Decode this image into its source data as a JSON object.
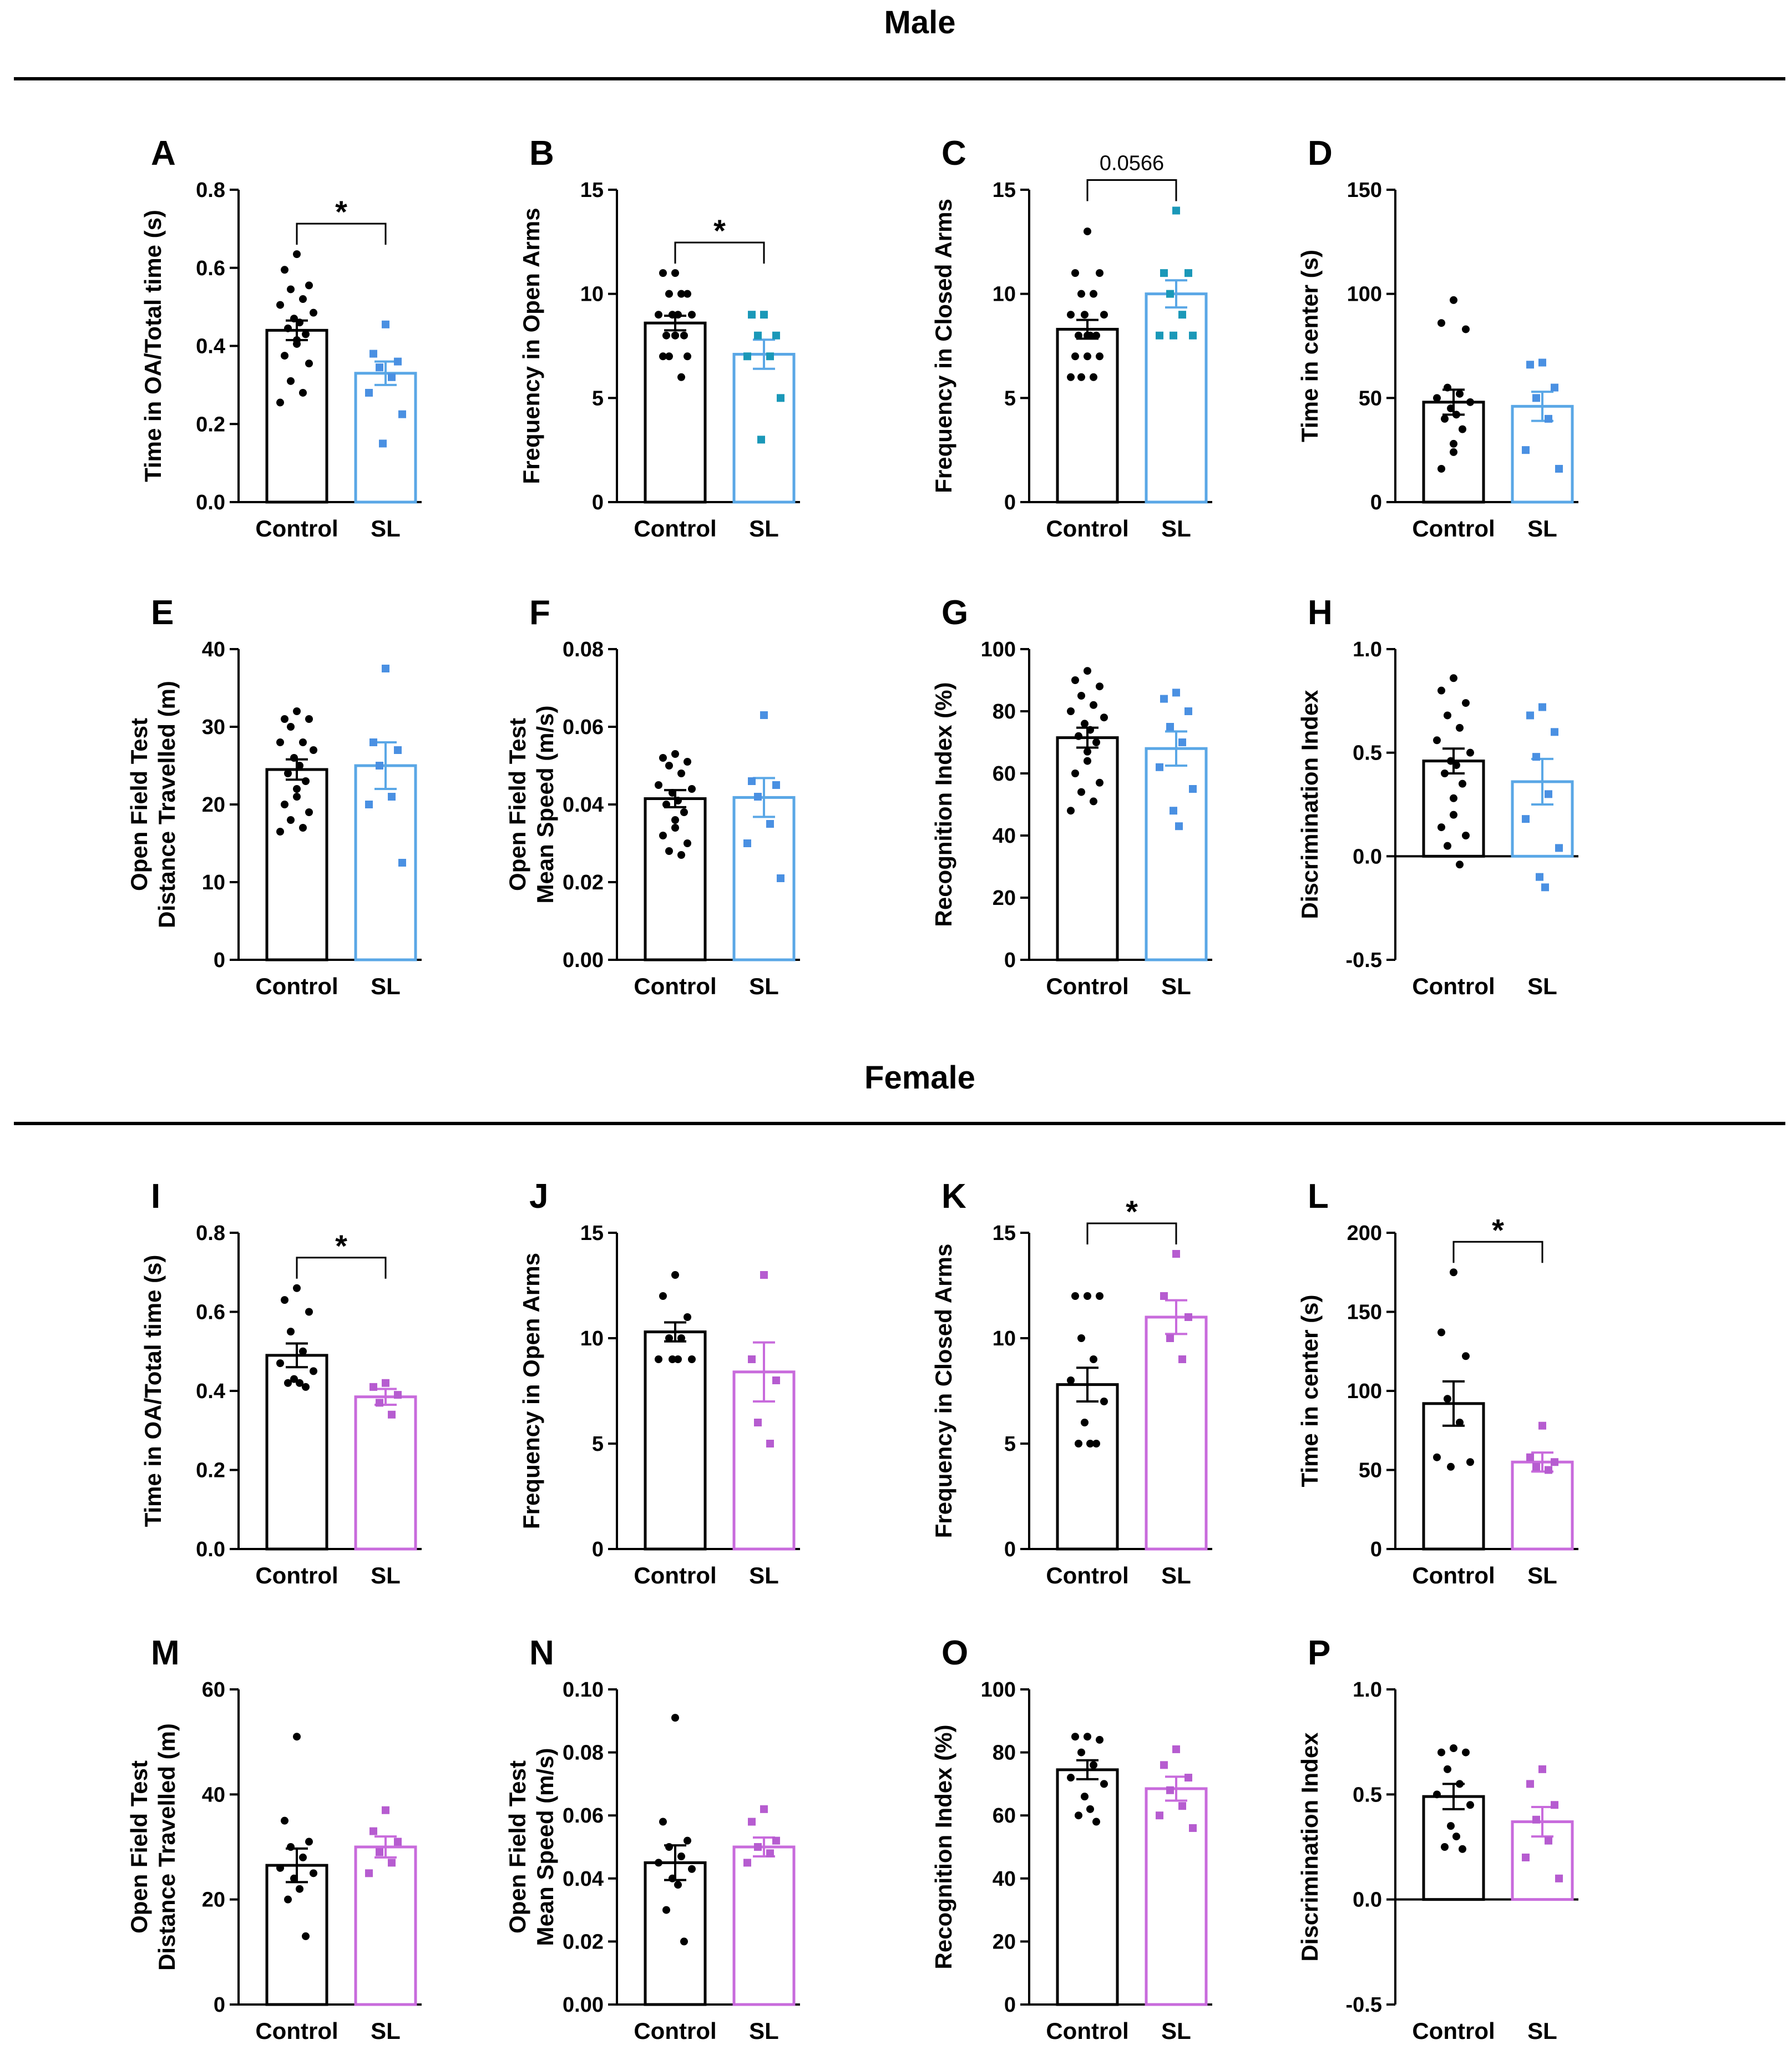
{
  "sections": [
    {
      "title": "Male"
    },
    {
      "title": "Female"
    }
  ],
  "colors": {
    "control": "#000000",
    "male_sl": "#5aa7e6",
    "male_sl_points": "#4a90e2",
    "male_sl_points_alt": "#1a98b8",
    "female_sl": "#c86bdc",
    "female_sl_points": "#b65cd0"
  },
  "chart_data": [
    {
      "panel": "A",
      "type": "bar",
      "section": "Male",
      "ylabel": [
        "Time in OA/Total time (s)"
      ],
      "ylim": [
        0,
        0.8
      ],
      "yticks": [
        "0.0",
        "0.2",
        "0.4",
        "0.6",
        "0.8"
      ],
      "tickvals": [
        0,
        0.2,
        0.4,
        0.6,
        0.8
      ],
      "categories": [
        "Control",
        "SL"
      ],
      "sl_color": "male_sl",
      "sl_point_color": "male_sl_points",
      "bars": [
        {
          "name": "Control",
          "mean": 0.44,
          "sem": 0.025,
          "points": [
            0.635,
            0.595,
            0.555,
            0.545,
            0.52,
            0.505,
            0.485,
            0.47,
            0.46,
            0.445,
            0.43,
            0.415,
            0.405,
            0.375,
            0.355,
            0.31,
            0.28,
            0.255
          ]
        },
        {
          "name": "SL",
          "mean": 0.33,
          "sem": 0.03,
          "points": [
            0.455,
            0.38,
            0.36,
            0.345,
            0.32,
            0.28,
            0.225,
            0.15
          ]
        }
      ],
      "significance": {
        "label": "*",
        "kind": "star"
      }
    },
    {
      "panel": "B",
      "type": "bar",
      "section": "Male",
      "ylabel": [
        "Frequency in Open Arms"
      ],
      "ylim": [
        0,
        15
      ],
      "yticks": [
        "0",
        "5",
        "10",
        "15"
      ],
      "tickvals": [
        0,
        5,
        10,
        15
      ],
      "categories": [
        "Control",
        "SL"
      ],
      "sl_color": "male_sl",
      "sl_point_color": "male_sl_points_alt",
      "bars": [
        {
          "name": "Control",
          "mean": 8.6,
          "sem": 0.35,
          "points": [
            11,
            11,
            10,
            10,
            10,
            9,
            9,
            9,
            9,
            8,
            8,
            8,
            8,
            7,
            7,
            7,
            6
          ]
        },
        {
          "name": "SL",
          "mean": 7.1,
          "sem": 0.7,
          "points": [
            9,
            9,
            8,
            8,
            7,
            7,
            5,
            3
          ]
        }
      ],
      "significance": {
        "label": "*",
        "kind": "star"
      }
    },
    {
      "panel": "C",
      "type": "bar",
      "section": "Male",
      "ylabel": [
        "Frequency in Closed Arms"
      ],
      "ylim": [
        0,
        15
      ],
      "yticks": [
        "0",
        "5",
        "10",
        "15"
      ],
      "tickvals": [
        0,
        5,
        10,
        15
      ],
      "categories": [
        "Control",
        "SL"
      ],
      "sl_color": "male_sl",
      "sl_point_color": "male_sl_points_alt",
      "bars": [
        {
          "name": "Control",
          "mean": 8.3,
          "sem": 0.45,
          "points": [
            13,
            11,
            11,
            10,
            10,
            9,
            9,
            9,
            8,
            8,
            8,
            8,
            7,
            7,
            7,
            6,
            6,
            6
          ]
        },
        {
          "name": "SL",
          "mean": 10.0,
          "sem": 0.65,
          "points": [
            14,
            11,
            11,
            10,
            9,
            8,
            8,
            8
          ]
        }
      ],
      "significance": {
        "label": "0.0566",
        "kind": "p"
      }
    },
    {
      "panel": "D",
      "type": "bar",
      "section": "Male",
      "ylabel": [
        "Time in center (s)"
      ],
      "ylim": [
        0,
        150
      ],
      "yticks": [
        "0",
        "50",
        "100",
        "150"
      ],
      "tickvals": [
        0,
        50,
        100,
        150
      ],
      "categories": [
        "Control",
        "SL"
      ],
      "sl_color": "male_sl",
      "sl_point_color": "male_sl_points",
      "bars": [
        {
          "name": "Control",
          "mean": 48,
          "sem": 6,
          "points": [
            97,
            86,
            83,
            55,
            52,
            50,
            48,
            45,
            42,
            40,
            35,
            28,
            24,
            16
          ]
        },
        {
          "name": "SL",
          "mean": 46,
          "sem": 7,
          "points": [
            67,
            66,
            55,
            50,
            40,
            25,
            16
          ]
        }
      ]
    },
    {
      "panel": "E",
      "type": "bar",
      "section": "Male",
      "ylabel": [
        "Open Field Test",
        "Distance Travelled (m)"
      ],
      "ylim": [
        0,
        40
      ],
      "yticks": [
        "0",
        "10",
        "20",
        "30",
        "40"
      ],
      "tickvals": [
        0,
        10,
        20,
        30,
        40
      ],
      "categories": [
        "Control",
        "SL"
      ],
      "sl_color": "male_sl",
      "sl_point_color": "male_sl_points",
      "bars": [
        {
          "name": "Control",
          "mean": 24.5,
          "sem": 1.3,
          "points": [
            32,
            31,
            31,
            30,
            28,
            28,
            27,
            26,
            25,
            24,
            23,
            22,
            21,
            20,
            19,
            18,
            17,
            16.5
          ]
        },
        {
          "name": "SL",
          "mean": 25.0,
          "sem": 3.0,
          "points": [
            37.5,
            28,
            27,
            25,
            21,
            20,
            12.5
          ]
        }
      ]
    },
    {
      "panel": "F",
      "type": "bar",
      "section": "Male",
      "ylabel": [
        "Open Field Test",
        "Mean Speed (m/s)"
      ],
      "ylim": [
        0,
        0.08
      ],
      "yticks": [
        "0.00",
        "0.02",
        "0.04",
        "0.06",
        "0.08"
      ],
      "tickvals": [
        0,
        0.02,
        0.04,
        0.06,
        0.08
      ],
      "categories": [
        "Control",
        "SL"
      ],
      "sl_color": "male_sl",
      "sl_point_color": "male_sl_points",
      "bars": [
        {
          "name": "Control",
          "mean": 0.0415,
          "sem": 0.0022,
          "points": [
            0.053,
            0.052,
            0.051,
            0.05,
            0.048,
            0.045,
            0.044,
            0.043,
            0.041,
            0.04,
            0.038,
            0.036,
            0.034,
            0.032,
            0.03,
            0.028,
            0.027
          ]
        },
        {
          "name": "SL",
          "mean": 0.0418,
          "sem": 0.005,
          "points": [
            0.063,
            0.046,
            0.045,
            0.042,
            0.035,
            0.03,
            0.021
          ]
        }
      ]
    },
    {
      "panel": "G",
      "type": "bar",
      "section": "Male",
      "ylabel": [
        "Recognition Index (%)"
      ],
      "ylim": [
        0,
        100
      ],
      "yticks": [
        "0",
        "20",
        "40",
        "60",
        "80",
        "100"
      ],
      "tickvals": [
        0,
        20,
        40,
        60,
        80,
        100
      ],
      "categories": [
        "Control",
        "SL"
      ],
      "sl_color": "male_sl",
      "sl_point_color": "male_sl_points",
      "bars": [
        {
          "name": "Control",
          "mean": 71.5,
          "sem": 3.2,
          "points": [
            93,
            90,
            88,
            85,
            82,
            80,
            78,
            76,
            74,
            72,
            70,
            67,
            64,
            60,
            57,
            54,
            51,
            48
          ]
        },
        {
          "name": "SL",
          "mean": 68,
          "sem": 5.5,
          "points": [
            86,
            84,
            80,
            75,
            70,
            62,
            55,
            48,
            43
          ]
        }
      ]
    },
    {
      "panel": "H",
      "type": "bar",
      "section": "Male",
      "ylabel": [
        "Discrimination Index"
      ],
      "ylim": [
        -0.5,
        1.0
      ],
      "yticks": [
        "-0.5",
        "0.0",
        "0.5",
        "1.0"
      ],
      "tickvals": [
        -0.5,
        0,
        0.5,
        1.0
      ],
      "zero_axis": true,
      "categories": [
        "Control",
        "SL"
      ],
      "sl_color": "male_sl",
      "sl_point_color": "male_sl_points",
      "bars": [
        {
          "name": "Control",
          "mean": 0.46,
          "sem": 0.06,
          "points": [
            0.86,
            0.8,
            0.74,
            0.68,
            0.62,
            0.56,
            0.5,
            0.46,
            0.44,
            0.4,
            0.35,
            0.28,
            0.2,
            0.14,
            0.1,
            0.05,
            -0.04
          ]
        },
        {
          "name": "SL",
          "mean": 0.36,
          "sem": 0.11,
          "points": [
            0.72,
            0.68,
            0.6,
            0.48,
            0.3,
            0.18,
            0.04,
            -0.1,
            -0.15
          ]
        }
      ]
    },
    {
      "panel": "I",
      "type": "bar",
      "section": "Female",
      "ylabel": [
        "Time in OA/Total time (s)"
      ],
      "ylim": [
        0,
        0.8
      ],
      "yticks": [
        "0.0",
        "0.2",
        "0.4",
        "0.6",
        "0.8"
      ],
      "tickvals": [
        0,
        0.2,
        0.4,
        0.6,
        0.8
      ],
      "categories": [
        "Control",
        "SL"
      ],
      "sl_color": "female_sl",
      "sl_point_color": "female_sl_points",
      "bars": [
        {
          "name": "Control",
          "mean": 0.49,
          "sem": 0.03,
          "points": [
            0.66,
            0.63,
            0.6,
            0.55,
            0.5,
            0.47,
            0.45,
            0.43,
            0.42,
            0.42,
            0.41
          ]
        },
        {
          "name": "SL",
          "mean": 0.385,
          "sem": 0.02,
          "points": [
            0.42,
            0.41,
            0.39,
            0.37,
            0.34
          ]
        }
      ],
      "significance": {
        "label": "*",
        "kind": "star"
      }
    },
    {
      "panel": "J",
      "type": "bar",
      "section": "Female",
      "ylabel": [
        "Frequency in Open Arms"
      ],
      "ylim": [
        0,
        15
      ],
      "yticks": [
        "0",
        "5",
        "10",
        "15"
      ],
      "tickvals": [
        0,
        5,
        10,
        15
      ],
      "categories": [
        "Control",
        "SL"
      ],
      "sl_color": "female_sl",
      "sl_point_color": "female_sl_points",
      "bars": [
        {
          "name": "Control",
          "mean": 10.3,
          "sem": 0.45,
          "points": [
            13,
            12,
            11,
            10,
            10,
            9,
            9,
            9,
            9
          ]
        },
        {
          "name": "SL",
          "mean": 8.4,
          "sem": 1.4,
          "points": [
            13,
            9,
            8,
            6,
            5
          ]
        }
      ]
    },
    {
      "panel": "K",
      "type": "bar",
      "section": "Female",
      "ylabel": [
        "Frequency in Closed Arms"
      ],
      "ylim": [
        0,
        15
      ],
      "yticks": [
        "0",
        "5",
        "10",
        "15"
      ],
      "tickvals": [
        0,
        5,
        10,
        15
      ],
      "categories": [
        "Control",
        "SL"
      ],
      "sl_color": "female_sl",
      "sl_point_color": "female_sl_points",
      "bars": [
        {
          "name": "Control",
          "mean": 7.8,
          "sem": 0.8,
          "points": [
            12,
            12,
            12,
            10,
            9,
            8,
            7,
            6,
            5,
            5,
            5
          ]
        },
        {
          "name": "SL",
          "mean": 11.0,
          "sem": 0.8,
          "points": [
            14,
            12,
            11,
            10,
            9
          ]
        }
      ],
      "significance": {
        "label": "*",
        "kind": "star"
      }
    },
    {
      "panel": "L",
      "type": "bar",
      "section": "Female",
      "ylabel": [
        "Time in center (s)"
      ],
      "ylim": [
        0,
        200
      ],
      "yticks": [
        "0",
        "50",
        "100",
        "150",
        "200"
      ],
      "tickvals": [
        0,
        50,
        100,
        150,
        200
      ],
      "categories": [
        "Control",
        "SL"
      ],
      "sl_color": "female_sl",
      "sl_point_color": "female_sl_points",
      "bars": [
        {
          "name": "Control",
          "mean": 92,
          "sem": 14,
          "points": [
            175,
            137,
            122,
            95,
            80,
            58,
            55,
            52
          ]
        },
        {
          "name": "SL",
          "mean": 55,
          "sem": 6,
          "points": [
            78,
            58,
            55,
            52,
            50
          ]
        }
      ],
      "significance": {
        "label": "*",
        "kind": "star"
      }
    },
    {
      "panel": "M",
      "type": "bar",
      "section": "Female",
      "ylabel": [
        "Open Field Test",
        "Distance Travelled (m)"
      ],
      "ylim": [
        0,
        60
      ],
      "yticks": [
        "0",
        "20",
        "40",
        "60"
      ],
      "tickvals": [
        0,
        20,
        40,
        60
      ],
      "categories": [
        "Control",
        "SL"
      ],
      "sl_color": "female_sl",
      "sl_point_color": "female_sl_points",
      "bars": [
        {
          "name": "Control",
          "mean": 26.5,
          "sem": 3.2,
          "points": [
            51,
            35,
            31,
            30,
            28,
            26,
            25,
            24,
            22,
            20,
            13
          ]
        },
        {
          "name": "SL",
          "mean": 30.0,
          "sem": 2.0,
          "points": [
            37,
            33,
            31,
            29,
            27,
            25
          ]
        }
      ]
    },
    {
      "panel": "N",
      "type": "bar",
      "section": "Female",
      "ylabel": [
        "Open Field Test",
        "Mean Speed (m/s)"
      ],
      "ylim": [
        0,
        0.1
      ],
      "yticks": [
        "0.00",
        "0.02",
        "0.04",
        "0.06",
        "0.08",
        "0.10"
      ],
      "tickvals": [
        0,
        0.02,
        0.04,
        0.06,
        0.08,
        0.1
      ],
      "categories": [
        "Control",
        "SL"
      ],
      "sl_color": "female_sl",
      "sl_point_color": "female_sl_points",
      "bars": [
        {
          "name": "Control",
          "mean": 0.045,
          "sem": 0.0055,
          "points": [
            0.091,
            0.058,
            0.052,
            0.05,
            0.047,
            0.045,
            0.043,
            0.04,
            0.038,
            0.03,
            0.02
          ]
        },
        {
          "name": "SL",
          "mean": 0.05,
          "sem": 0.003,
          "points": [
            0.062,
            0.058,
            0.052,
            0.05,
            0.048,
            0.045
          ]
        }
      ]
    },
    {
      "panel": "O",
      "type": "bar",
      "section": "Female",
      "ylabel": [
        "Recognition Index (%)"
      ],
      "ylim": [
        0,
        100
      ],
      "yticks": [
        "0",
        "20",
        "40",
        "60",
        "80",
        "100"
      ],
      "tickvals": [
        0,
        20,
        40,
        60,
        80,
        100
      ],
      "categories": [
        "Control",
        "SL"
      ],
      "sl_color": "female_sl",
      "sl_point_color": "female_sl_points",
      "bars": [
        {
          "name": "Control",
          "mean": 74.5,
          "sem": 3.0,
          "points": [
            85,
            85,
            84,
            80,
            76,
            72,
            70,
            66,
            62,
            60,
            58
          ]
        },
        {
          "name": "SL",
          "mean": 68.5,
          "sem": 3.8,
          "points": [
            81,
            76,
            72,
            68,
            63,
            60,
            56
          ]
        }
      ]
    },
    {
      "panel": "P",
      "type": "bar",
      "section": "Female",
      "ylabel": [
        "Discrimination Index"
      ],
      "ylim": [
        -0.5,
        1.0
      ],
      "yticks": [
        "-0.5",
        "0.0",
        "0.5",
        "1.0"
      ],
      "tickvals": [
        -0.5,
        0,
        0.5,
        1.0
      ],
      "zero_axis": true,
      "categories": [
        "Control",
        "SL"
      ],
      "sl_color": "female_sl",
      "sl_point_color": "female_sl_points",
      "bars": [
        {
          "name": "Control",
          "mean": 0.49,
          "sem": 0.06,
          "points": [
            0.72,
            0.7,
            0.7,
            0.62,
            0.55,
            0.5,
            0.45,
            0.35,
            0.3,
            0.25,
            0.24
          ]
        },
        {
          "name": "SL",
          "mean": 0.37,
          "sem": 0.07,
          "points": [
            0.62,
            0.55,
            0.45,
            0.38,
            0.28,
            0.2,
            0.1
          ]
        }
      ]
    }
  ]
}
